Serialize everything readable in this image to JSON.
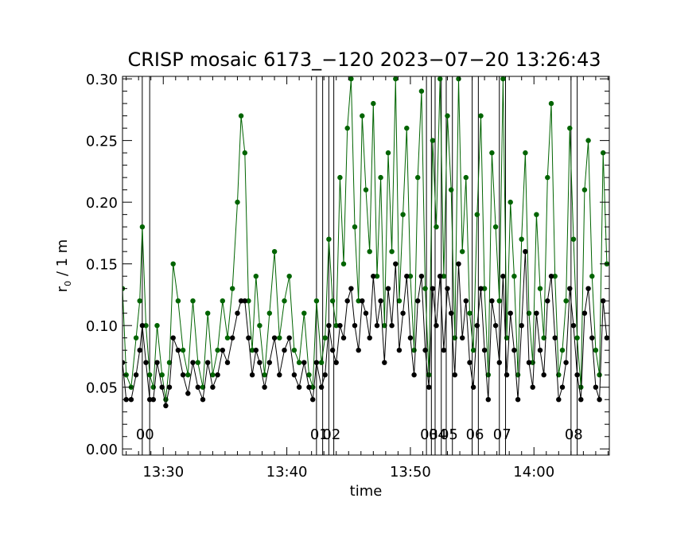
{
  "chart_data": {
    "type": "scatter",
    "title": "CRISP mosaic 6173_−120 2023−07−20 13:26:43",
    "xlabel": "time",
    "ylabel_main": "r",
    "ylabel_sub": "0",
    "ylabel_rest": " / 1 m",
    "x_unit": "minutes since 13:00",
    "xlim": [
      26.7,
      66.1
    ],
    "ylim": [
      -0.005,
      0.302
    ],
    "x_ticks": [
      {
        "value": 30,
        "label": "13:30"
      },
      {
        "value": 40,
        "label": "13:40"
      },
      {
        "value": 50,
        "label": "13:50"
      },
      {
        "value": 60,
        "label": "14:00"
      }
    ],
    "y_ticks": [
      {
        "value": 0.0,
        "label": "0.00"
      },
      {
        "value": 0.05,
        "label": "0.05"
      },
      {
        "value": 0.1,
        "label": "0.10"
      },
      {
        "value": 0.15,
        "label": "0.15"
      },
      {
        "value": 0.2,
        "label": "0.20"
      },
      {
        "value": 0.25,
        "label": "0.25"
      },
      {
        "value": 0.3,
        "label": "0.30"
      }
    ],
    "markers": [
      {
        "label": "00",
        "x_start": 28.3,
        "x_end": 28.9
      },
      {
        "label": "01",
        "x_start": 42.4,
        "x_end": 42.9
      },
      {
        "label": "02",
        "x_start": 43.4,
        "x_end": 43.8
      },
      {
        "label": "03",
        "x_start": 51.3,
        "x_end": 51.7
      },
      {
        "label": "04",
        "x_start": 52.0,
        "x_end": 52.5
      },
      {
        "label": "05",
        "x_start": 52.9,
        "x_end": 53.4
      },
      {
        "label": "06",
        "x_start": 55.0,
        "x_end": 55.5
      },
      {
        "label": "07",
        "x_start": 57.2,
        "x_end": 57.7
      },
      {
        "label": "08",
        "x_start": 63.0,
        "x_end": 63.5
      }
    ],
    "series": [
      {
        "color": "#006400",
        "x": [
          26.7,
          27.0,
          27.4,
          27.8,
          28.1,
          28.3,
          28.6,
          28.9,
          29.2,
          29.5,
          29.9,
          30.2,
          30.5,
          30.8,
          31.2,
          31.6,
          32.0,
          32.4,
          32.8,
          33.2,
          33.6,
          34.0,
          34.4,
          34.8,
          35.2,
          35.6,
          36.0,
          36.3,
          36.6,
          36.9,
          37.2,
          37.5,
          37.8,
          38.2,
          38.6,
          39.0,
          39.4,
          39.8,
          40.2,
          40.6,
          41.0,
          41.4,
          41.8,
          42.1,
          42.4,
          42.8,
          43.1,
          43.4,
          43.7,
          44.0,
          44.3,
          44.6,
          44.9,
          45.2,
          45.5,
          45.8,
          46.1,
          46.4,
          46.7,
          47.0,
          47.3,
          47.6,
          47.9,
          48.2,
          48.5,
          48.8,
          49.1,
          49.4,
          49.7,
          50.0,
          50.3,
          50.6,
          50.9,
          51.2,
          51.5,
          51.8,
          52.1,
          52.4,
          52.7,
          53.0,
          53.3,
          53.6,
          53.9,
          54.2,
          54.5,
          54.8,
          55.1,
          55.4,
          55.7,
          56.0,
          56.3,
          56.6,
          56.9,
          57.2,
          57.5,
          57.8,
          58.1,
          58.4,
          58.7,
          59.0,
          59.3,
          59.6,
          59.9,
          60.2,
          60.5,
          60.8,
          61.1,
          61.4,
          61.7,
          62.0,
          62.3,
          62.6,
          62.9,
          63.2,
          63.5,
          63.8,
          64.1,
          64.4,
          64.7,
          65.0,
          65.3,
          65.6,
          65.9
        ],
        "y": [
          0.13,
          0.06,
          0.05,
          0.09,
          0.12,
          0.18,
          0.1,
          0.06,
          0.05,
          0.1,
          0.06,
          0.04,
          0.07,
          0.15,
          0.12,
          0.08,
          0.06,
          0.12,
          0.07,
          0.05,
          0.11,
          0.06,
          0.08,
          0.12,
          0.09,
          0.13,
          0.2,
          0.27,
          0.24,
          0.12,
          0.08,
          0.14,
          0.1,
          0.06,
          0.11,
          0.16,
          0.09,
          0.12,
          0.14,
          0.08,
          0.07,
          0.11,
          0.06,
          0.05,
          0.12,
          0.07,
          0.09,
          0.17,
          0.12,
          0.1,
          0.22,
          0.15,
          0.26,
          0.3,
          0.18,
          0.12,
          0.27,
          0.21,
          0.16,
          0.28,
          0.14,
          0.22,
          0.1,
          0.24,
          0.16,
          0.3,
          0.12,
          0.19,
          0.26,
          0.14,
          0.08,
          0.22,
          0.29,
          0.13,
          0.06,
          0.25,
          0.18,
          0.3,
          0.14,
          0.27,
          0.21,
          0.09,
          0.3,
          0.16,
          0.22,
          0.11,
          0.08,
          0.19,
          0.27,
          0.13,
          0.06,
          0.24,
          0.18,
          0.12,
          0.3,
          0.09,
          0.2,
          0.14,
          0.06,
          0.17,
          0.24,
          0.11,
          0.07,
          0.19,
          0.13,
          0.09,
          0.22,
          0.28,
          0.14,
          0.06,
          0.08,
          0.12,
          0.26,
          0.17,
          0.09,
          0.05,
          0.21,
          0.25,
          0.14,
          0.08,
          0.06,
          0.24,
          0.15
        ]
      },
      {
        "color": "#000000",
        "x": [
          26.7,
          27.0,
          27.4,
          27.8,
          28.1,
          28.3,
          28.6,
          28.9,
          29.2,
          29.5,
          29.9,
          30.2,
          30.5,
          30.8,
          31.2,
          31.6,
          32.0,
          32.4,
          32.8,
          33.2,
          33.6,
          34.0,
          34.4,
          34.8,
          35.2,
          35.6,
          36.0,
          36.3,
          36.6,
          36.9,
          37.2,
          37.5,
          37.8,
          38.2,
          38.6,
          39.0,
          39.4,
          39.8,
          40.2,
          40.6,
          41.0,
          41.4,
          41.8,
          42.1,
          42.4,
          42.8,
          43.1,
          43.4,
          43.7,
          44.0,
          44.3,
          44.6,
          44.9,
          45.2,
          45.5,
          45.8,
          46.1,
          46.4,
          46.7,
          47.0,
          47.3,
          47.6,
          47.9,
          48.2,
          48.5,
          48.8,
          49.1,
          49.4,
          49.7,
          50.0,
          50.3,
          50.6,
          50.9,
          51.2,
          51.5,
          51.8,
          52.1,
          52.4,
          52.7,
          53.0,
          53.3,
          53.6,
          53.9,
          54.2,
          54.5,
          54.8,
          55.1,
          55.4,
          55.7,
          56.0,
          56.3,
          56.6,
          56.9,
          57.2,
          57.5,
          57.8,
          58.1,
          58.4,
          58.7,
          59.0,
          59.3,
          59.6,
          59.9,
          60.2,
          60.5,
          60.8,
          61.1,
          61.4,
          61.7,
          62.0,
          62.3,
          62.6,
          62.9,
          63.2,
          63.5,
          63.8,
          64.1,
          64.4,
          64.7,
          65.0,
          65.3,
          65.6,
          65.9
        ],
        "y": [
          0.07,
          0.04,
          0.04,
          0.06,
          0.08,
          0.1,
          0.07,
          0.04,
          0.04,
          0.07,
          0.05,
          0.035,
          0.05,
          0.09,
          0.08,
          0.06,
          0.045,
          0.07,
          0.05,
          0.04,
          0.07,
          0.05,
          0.06,
          0.08,
          0.07,
          0.09,
          0.11,
          0.12,
          0.12,
          0.09,
          0.06,
          0.08,
          0.07,
          0.05,
          0.07,
          0.09,
          0.06,
          0.08,
          0.09,
          0.06,
          0.05,
          0.07,
          0.05,
          0.04,
          0.07,
          0.05,
          0.06,
          0.1,
          0.08,
          0.07,
          0.1,
          0.09,
          0.12,
          0.13,
          0.1,
          0.08,
          0.12,
          0.11,
          0.09,
          0.14,
          0.1,
          0.12,
          0.07,
          0.13,
          0.1,
          0.15,
          0.08,
          0.11,
          0.14,
          0.09,
          0.06,
          0.12,
          0.14,
          0.08,
          0.05,
          0.13,
          0.1,
          0.14,
          0.08,
          0.13,
          0.11,
          0.06,
          0.15,
          0.09,
          0.12,
          0.07,
          0.05,
          0.1,
          0.13,
          0.08,
          0.04,
          0.12,
          0.1,
          0.07,
          0.14,
          0.06,
          0.11,
          0.08,
          0.04,
          0.1,
          0.16,
          0.07,
          0.05,
          0.11,
          0.08,
          0.06,
          0.12,
          0.14,
          0.09,
          0.04,
          0.05,
          0.07,
          0.13,
          0.1,
          0.06,
          0.04,
          0.11,
          0.13,
          0.09,
          0.05,
          0.04,
          0.12,
          0.09
        ]
      }
    ]
  }
}
